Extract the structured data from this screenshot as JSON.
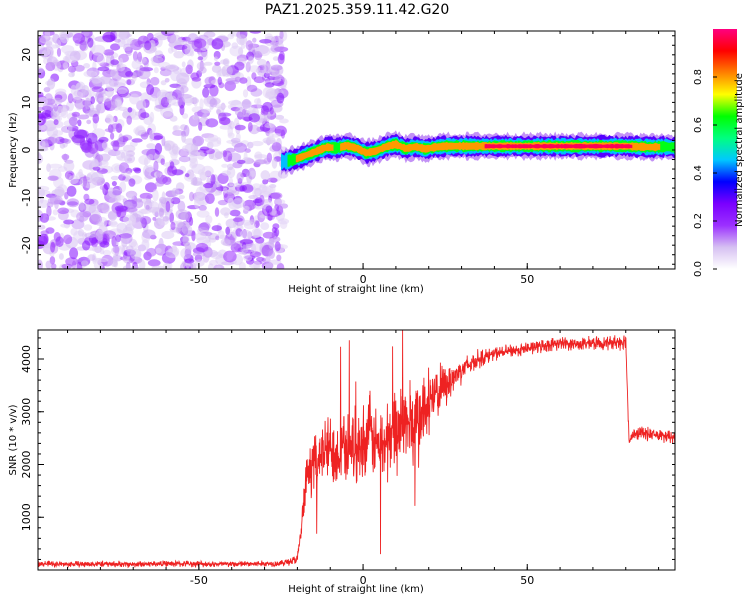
{
  "chart_data": [
    {
      "type": "heatmap",
      "title": "PAZ1.2025.359.11.42.G20",
      "xlabel": "Height of straight line (km)",
      "ylabel": "Frequency (Hz)",
      "xlim": [
        -99,
        95
      ],
      "ylim": [
        -25,
        25
      ],
      "xticks": [
        -50,
        0,
        50
      ],
      "yticks": [
        -20,
        -10,
        0,
        10,
        20
      ],
      "colorbar": {
        "label": "Normalized spectral amplitude",
        "range": [
          0,
          1
        ],
        "ticks": [
          0.0,
          0.2,
          0.4,
          0.6,
          0.8
        ],
        "tick_labels": [
          "0.0",
          "0.2",
          "0.4",
          "0.6",
          "0.8"
        ],
        "colormap": [
          "#ffffff",
          "#d6c0f2",
          "#9b30ff",
          "#7a00ff",
          "#0000ff",
          "#00c8ff",
          "#00ff80",
          "#00ff00",
          "#ffff00",
          "#ff8000",
          "#ff0000",
          "#ff0080"
        ]
      },
      "noise_region": {
        "x_from": -99,
        "x_to": -24,
        "freq_from": -25,
        "freq_to": 25,
        "amplitude": "low (0.0-0.2)"
      },
      "signal_track": {
        "x": [
          -25,
          -23,
          -20,
          -17,
          -14,
          -11,
          -8,
          -5,
          -2,
          1,
          4,
          7,
          10,
          13,
          16,
          19,
          22,
          25,
          30,
          35,
          40,
          50,
          60,
          70,
          80,
          88,
          92,
          95
        ],
        "frequency": [
          -2.5,
          -2.3,
          -1.8,
          -1.0,
          -0.2,
          0.6,
          0.4,
          0.9,
          0.4,
          -0.6,
          -0.2,
          0.7,
          1.2,
          0.3,
          0.7,
          0.2,
          0.6,
          0.8,
          0.8,
          0.8,
          0.8,
          0.8,
          0.8,
          0.8,
          0.8,
          0.6,
          0.7,
          0.5
        ],
        "peak_amplitude": [
          0.5,
          0.65,
          0.85,
          0.8,
          0.85,
          0.9,
          0.75,
          0.9,
          0.85,
          0.8,
          0.85,
          0.9,
          0.9,
          0.85,
          0.9,
          0.85,
          0.9,
          0.95,
          0.95,
          0.95,
          1.0,
          1.0,
          1.0,
          1.0,
          1.0,
          0.9,
          0.75,
          0.7
        ]
      }
    },
    {
      "type": "line",
      "xlabel": "Height of straight line (km)",
      "ylabel": "SNR (10 * v/v)",
      "xlim": [
        -99,
        95
      ],
      "ylim": [
        0,
        4550
      ],
      "xticks": [
        -50,
        0,
        50
      ],
      "yticks": [
        1000,
        2000,
        3000,
        4000
      ],
      "color": "#ee2222",
      "series": [
        {
          "name": "SNR",
          "x": [
            -99,
            -90,
            -80,
            -70,
            -60,
            -50,
            -40,
            -30,
            -25,
            -20,
            -19,
            -18,
            -17,
            -15,
            -13,
            -10,
            -7,
            -4,
            -1,
            2,
            5,
            8,
            10,
            13,
            16,
            19,
            22,
            25,
            30,
            35,
            40,
            45,
            50,
            55,
            60,
            65,
            70,
            75,
            80,
            81,
            82,
            85,
            90,
            95
          ],
          "y": [
            120,
            110,
            115,
            110,
            120,
            115,
            110,
            120,
            125,
            200,
            650,
            1300,
            1800,
            2050,
            2200,
            2300,
            2250,
            2400,
            2350,
            2600,
            2300,
            2500,
            2700,
            2800,
            2700,
            3000,
            3300,
            3500,
            3800,
            4000,
            4100,
            4150,
            4200,
            4250,
            4300,
            4280,
            4300,
            4300,
            4350,
            2450,
            2550,
            2600,
            2550,
            2500
          ],
          "noise_amp": [
            70,
            70,
            70,
            70,
            70,
            70,
            70,
            70,
            70,
            120,
            300,
            450,
            500,
            650,
            750,
            800,
            800,
            800,
            850,
            900,
            900,
            1000,
            1000,
            1000,
            1100,
            1000,
            700,
            500,
            300,
            220,
            150,
            150,
            150,
            150,
            150,
            150,
            150,
            150,
            200,
            150,
            150,
            150,
            150,
            150
          ]
        }
      ]
    }
  ]
}
